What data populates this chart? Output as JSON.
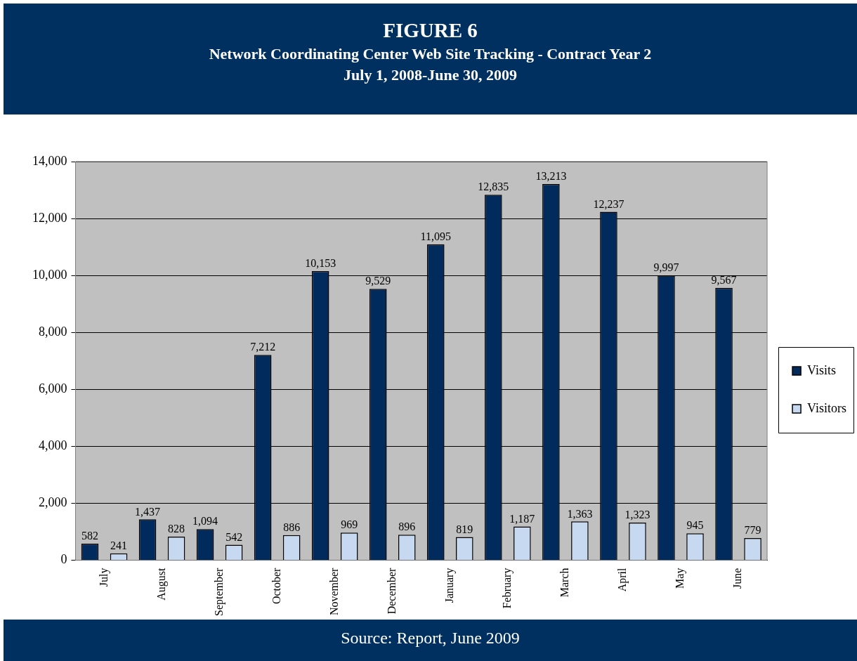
{
  "chart_data": {
    "type": "bar",
    "title": "FIGURE 6",
    "subtitle": "Network Coordinating Center Web Site Tracking - Contract Year 2\nJuly 1, 2008-June 30, 2009",
    "categories": [
      "July",
      "August",
      "September",
      "October",
      "November",
      "December",
      "January",
      "February",
      "March",
      "April",
      "May",
      "June"
    ],
    "series": [
      {
        "name": "Visits",
        "color": "#002b5c",
        "values": [
          582,
          1437,
          1094,
          7212,
          10153,
          9529,
          11095,
          12835,
          13213,
          12237,
          9997,
          9567
        ],
        "value_labels": [
          "582",
          "1,437",
          "1,094",
          "7,212",
          "10,153",
          "9,529",
          "11,095",
          "12,835",
          "13,213",
          "12,237",
          "9,997",
          "9,567"
        ]
      },
      {
        "name": "Visitors",
        "color": "#c6d9f1",
        "values": [
          241,
          828,
          542,
          886,
          969,
          896,
          819,
          1187,
          1363,
          1323,
          945,
          779
        ],
        "value_labels": [
          "241",
          "828",
          "542",
          "886",
          "969",
          "896",
          "819",
          "1,187",
          "1,363",
          "1,323",
          "945",
          "779"
        ]
      }
    ],
    "ylim": [
      0,
      14000
    ],
    "yticks": [
      0,
      {
        "value": 2000,
        "label": "2,000"
      },
      {
        "value": 4000,
        "label": "4,000"
      },
      {
        "value": 6000,
        "label": "6,000"
      },
      {
        "value": 8000,
        "label": "8,000"
      },
      {
        "value": 10000,
        "label": "10,000"
      },
      {
        "value": 12000,
        "label": "12,000"
      },
      {
        "value": 14000,
        "label": "14,000"
      }
    ],
    "grid": "y",
    "legend": "right",
    "annotations": [
      "Source:  Report, June 2009"
    ]
  }
}
